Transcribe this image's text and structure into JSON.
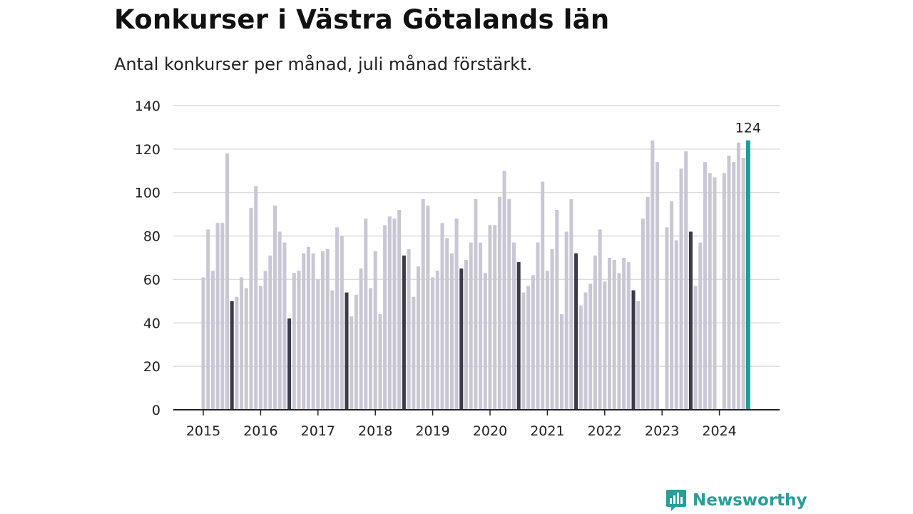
{
  "header": {
    "title": "Konkurser i Västra Götalands län",
    "subtitle": "Antal konkurser per månad, juli månad förstärkt."
  },
  "brand": {
    "name": "Newsworthy",
    "color": "#2a9d9a",
    "icon": "chart-bubble-icon"
  },
  "colors": {
    "bar": "#c8c7d3",
    "highlight_july": "#3b3a49",
    "latest": "#1a9e96",
    "grid": "#dcdcdc",
    "axis": "#222222"
  },
  "chart_data": {
    "type": "bar",
    "title": "Konkurser i Västra Götalands län",
    "subtitle": "Antal konkurser per månad, juli månad förstärkt.",
    "ylim": [
      0,
      140
    ],
    "yticks": [
      0,
      20,
      40,
      60,
      80,
      100,
      120,
      140
    ],
    "xtick_labels": [
      "2015",
      "2016",
      "2017",
      "2018",
      "2019",
      "2020",
      "2021",
      "2022",
      "2023",
      "2024"
    ],
    "grid": true,
    "start": "2015-01",
    "annotation": {
      "label": "124",
      "month": "2024-07"
    },
    "years": [
      {
        "year": "2015",
        "values": [
          61,
          83,
          64,
          86,
          86,
          118,
          50,
          52,
          61,
          56,
          93,
          103
        ]
      },
      {
        "year": "2016",
        "values": [
          57,
          64,
          71,
          94,
          82,
          77,
          42,
          63,
          64,
          72,
          75,
          72
        ]
      },
      {
        "year": "2017",
        "values": [
          60,
          73,
          74,
          55,
          84,
          80,
          54,
          43,
          53,
          65,
          88,
          56
        ]
      },
      {
        "year": "2018",
        "values": [
          73,
          44,
          85,
          89,
          88,
          92,
          71,
          74,
          52,
          66,
          97,
          94
        ]
      },
      {
        "year": "2019",
        "values": [
          61,
          64,
          86,
          79,
          72,
          88,
          65,
          69,
          77,
          97,
          77,
          63
        ]
      },
      {
        "year": "2020",
        "values": [
          85,
          85,
          98,
          110,
          97,
          77,
          68,
          54,
          57,
          62,
          77,
          105
        ]
      },
      {
        "year": "2021",
        "values": [
          64,
          74,
          92,
          44,
          82,
          97,
          72,
          48,
          54,
          58,
          71,
          83
        ]
      },
      {
        "year": "2022",
        "values": [
          59,
          70,
          69,
          63,
          70,
          68,
          55,
          50,
          88,
          98,
          124,
          114
        ]
      },
      {
        "year": "2023",
        "values": [
          0,
          84,
          96,
          78,
          111,
          119,
          82,
          57,
          77,
          114,
          109,
          107
        ]
      },
      {
        "year": "2024",
        "values": [
          0,
          109,
          117,
          114,
          123,
          116,
          124
        ]
      }
    ]
  }
}
